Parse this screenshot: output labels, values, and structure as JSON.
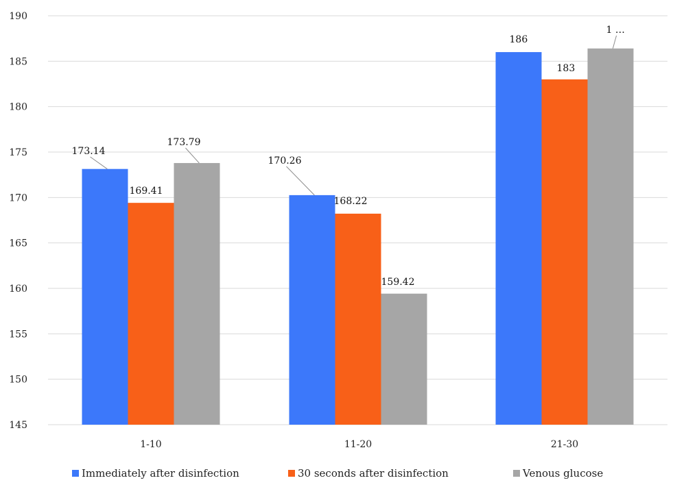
{
  "chart_data": {
    "type": "bar",
    "categories": [
      "1-10",
      "11-20",
      "21-30"
    ],
    "series": [
      {
        "name": "Immediately after disinfection",
        "color": "#3c78fa",
        "values": [
          173.14,
          170.26,
          186
        ],
        "labels": [
          "173.14",
          "170.26",
          "186"
        ]
      },
      {
        "name": "30 seconds after disinfection",
        "color": "#f86018",
        "values": [
          169.41,
          168.22,
          183
        ],
        "labels": [
          "169.41",
          "168.22",
          "183"
        ]
      },
      {
        "name": "Venous glucose",
        "color": "#a6a6a6",
        "values": [
          173.79,
          159.42,
          186.4
        ],
        "labels": [
          "173.79",
          "159.42",
          "1 …"
        ]
      }
    ],
    "yticks": [
      145,
      150,
      155,
      160,
      165,
      170,
      175,
      180,
      185,
      190
    ],
    "ylim": [
      145,
      190
    ],
    "grid": true,
    "legend_position": "bottom",
    "title": "",
    "xlabel": "",
    "ylabel": ""
  }
}
